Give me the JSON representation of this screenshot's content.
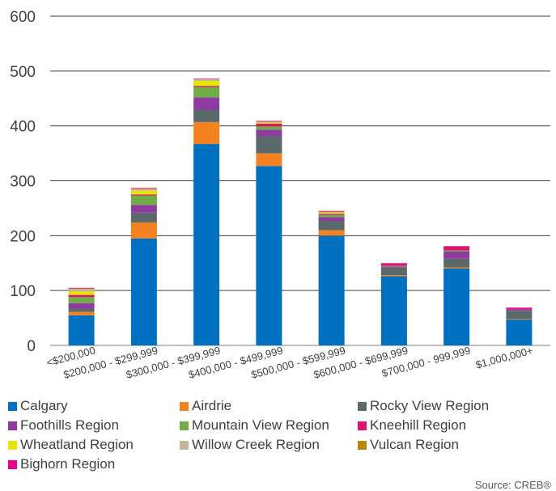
{
  "chart_data": {
    "type": "bar",
    "stacked": true,
    "categories": [
      "<$200,000",
      "$200,000 - $299,999",
      "$300,000 - $399,999",
      "$400,000 - $499,999",
      "$500,000 - $599,999",
      "$600,000 - $699,999",
      "$700,000 - 999,999",
      "$1,000,000+"
    ],
    "series": [
      {
        "name": "Calgary",
        "color": "#0070C0",
        "values": [
          55,
          195,
          367,
          327,
          200,
          126,
          140,
          47
        ]
      },
      {
        "name": "Airdrie",
        "color": "#F58220",
        "values": [
          6,
          29,
          40,
          23,
          10,
          2,
          2,
          1
        ]
      },
      {
        "name": "Rocky View Region",
        "color": "#5A6A6A",
        "values": [
          6,
          18,
          22,
          31,
          17,
          14,
          16,
          15
        ]
      },
      {
        "name": "Foothills Region",
        "color": "#8E3A9E",
        "values": [
          10,
          14,
          23,
          12,
          7,
          2,
          13,
          3
        ]
      },
      {
        "name": "Mountain View Region",
        "color": "#70AD47",
        "values": [
          11,
          17,
          19,
          6,
          4,
          1,
          2,
          0
        ]
      },
      {
        "name": "Kneehill Region",
        "color": "#D9176F",
        "values": [
          4,
          2,
          2,
          5,
          2,
          4,
          7,
          2
        ]
      },
      {
        "name": "Wheatland Region",
        "color": "#E6E600",
        "values": [
          6,
          7,
          9,
          2,
          2,
          0,
          0,
          0
        ]
      },
      {
        "name": "Willow Creek Region",
        "color": "#C4B59A",
        "values": [
          5,
          3,
          3,
          1,
          1,
          0,
          0,
          0
        ]
      },
      {
        "name": "Vulcan Region",
        "color": "#B8860B",
        "values": [
          1,
          1,
          0,
          1,
          1,
          0,
          0,
          0
        ]
      },
      {
        "name": "Bighorn Region",
        "color": "#EC008C",
        "values": [
          1,
          1,
          1,
          1,
          1,
          1,
          1,
          1
        ]
      }
    ],
    "ylim": [
      0,
      600
    ],
    "yticks": [
      0,
      100,
      200,
      300,
      400,
      500,
      600
    ],
    "grid": true,
    "legend_position": "bottom"
  },
  "source": "Source: CREB®"
}
